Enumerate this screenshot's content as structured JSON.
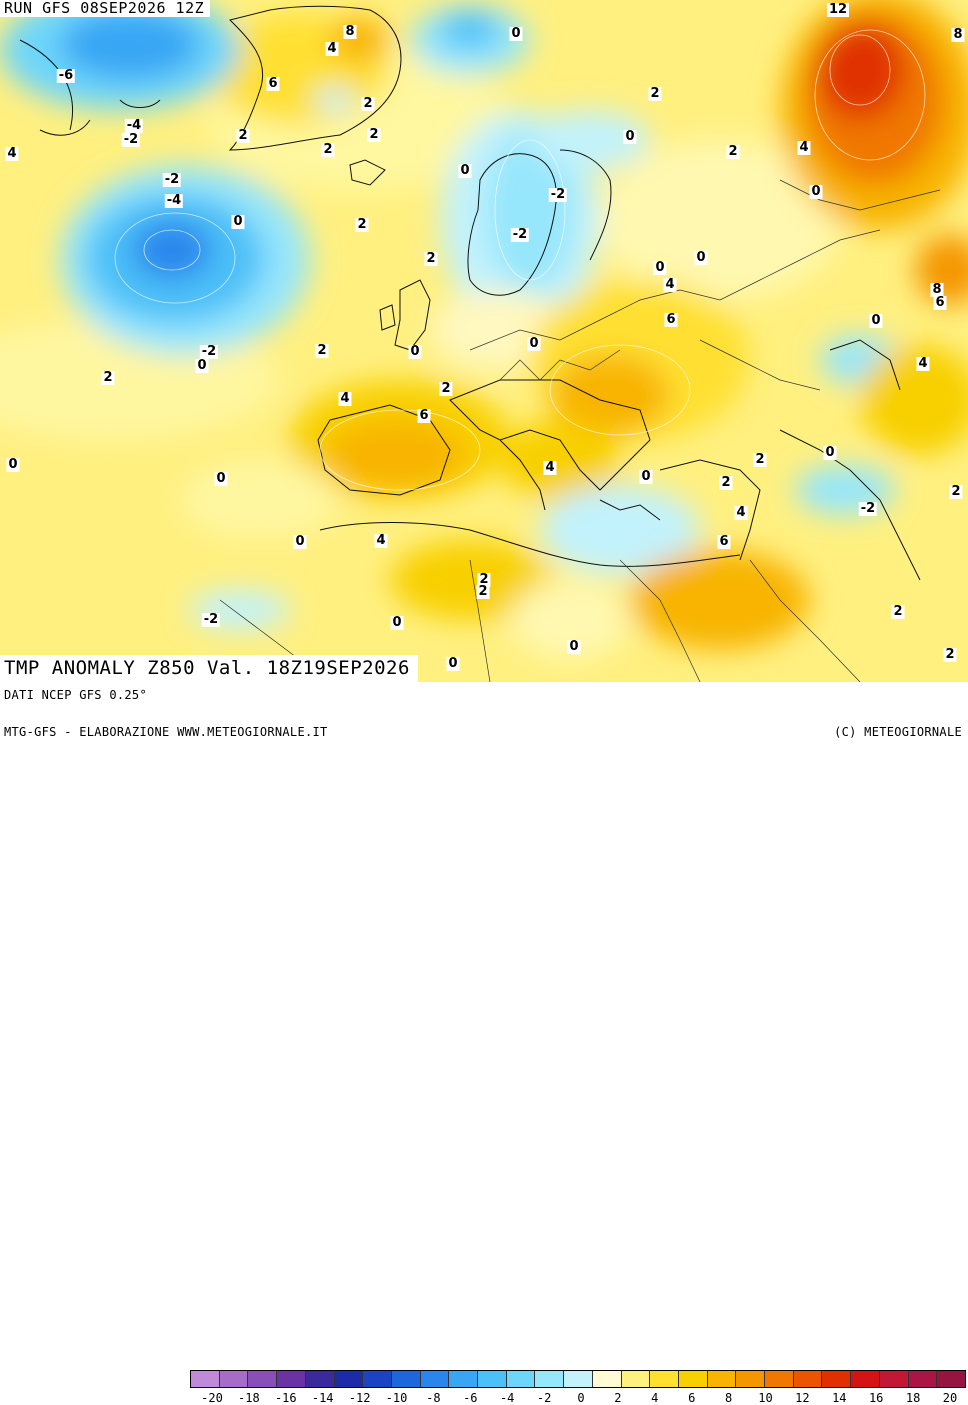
{
  "header": {
    "run_text": "RUN GFS 08SEP2026 12Z"
  },
  "title": {
    "text": "TMP ANOMALY Z850 Val. 18Z19SEP2026"
  },
  "footer": {
    "source": "DATI NCEP GFS 0.25°",
    "credit": "MTG-GFS - ELABORAZIONE WWW.METEOGIORNALE.IT",
    "copyright": "(C) METEOGIORNALE"
  },
  "legend": {
    "colors": [
      "#c08ad8",
      "#a66cc8",
      "#8a4eb8",
      "#6a32a4",
      "#3a2a9c",
      "#1c2ca8",
      "#1a44c4",
      "#1e66dc",
      "#2a86ec",
      "#38a6f4",
      "#4cc0f8",
      "#6ed6fa",
      "#96e6fc",
      "#c2f2fc",
      "#fffbd2",
      "#fff080",
      "#ffe030",
      "#f8d000",
      "#f8b400",
      "#f49600",
      "#f07800",
      "#ec5400",
      "#e03000",
      "#d41414",
      "#c21836",
      "#ac1446",
      "#961440"
    ],
    "ticks": [
      "-20",
      "-18",
      "-16",
      "-14",
      "-12",
      "-10",
      "-8",
      "-6",
      "-4",
      "-2",
      "0",
      "2",
      "4",
      "6",
      "8",
      "10",
      "12",
      "14",
      "16",
      "18",
      "20"
    ]
  },
  "map_labels": [
    {
      "t": "8"
    },
    {
      "t": "4"
    },
    {
      "t": "6"
    },
    {
      "t": "2"
    },
    {
      "t": "2"
    },
    {
      "t": "2"
    },
    {
      "t": "2"
    },
    {
      "t": "0"
    },
    {
      "t": "-6"
    },
    {
      "t": "-4"
    },
    {
      "t": "-2"
    },
    {
      "t": "4"
    },
    {
      "t": "-2"
    },
    {
      "t": "-4"
    },
    {
      "t": "0"
    },
    {
      "t": "2"
    },
    {
      "t": "0"
    },
    {
      "t": "-2"
    },
    {
      "t": "-2"
    },
    {
      "t": "2"
    },
    {
      "t": "0"
    },
    {
      "t": "2"
    },
    {
      "t": "0"
    },
    {
      "t": "2"
    },
    {
      "t": "4"
    },
    {
      "t": "0"
    },
    {
      "t": "12"
    },
    {
      "t": "8"
    },
    {
      "t": "4"
    },
    {
      "t": "0"
    },
    {
      "t": "2"
    },
    {
      "t": "4"
    },
    {
      "t": "6"
    },
    {
      "t": "0"
    },
    {
      "t": "-2"
    },
    {
      "t": "0"
    },
    {
      "t": "2"
    },
    {
      "t": "2"
    },
    {
      "t": "0"
    },
    {
      "t": "2"
    },
    {
      "t": "4"
    },
    {
      "t": "6"
    },
    {
      "t": "0"
    },
    {
      "t": "0"
    },
    {
      "t": "4"
    },
    {
      "t": "0"
    },
    {
      "t": "0"
    },
    {
      "t": "4"
    },
    {
      "t": "0"
    },
    {
      "t": "2"
    },
    {
      "t": "2"
    },
    {
      "t": "-2"
    },
    {
      "t": "0"
    },
    {
      "t": "0"
    },
    {
      "t": "2"
    },
    {
      "t": "2"
    },
    {
      "t": "2"
    },
    {
      "t": "4"
    },
    {
      "t": "6"
    },
    {
      "t": "8"
    },
    {
      "t": "6"
    },
    {
      "t": "0"
    },
    {
      "t": "4"
    },
    {
      "t": "0"
    },
    {
      "t": "-2"
    },
    {
      "t": "2"
    },
    {
      "t": "2"
    }
  ]
}
